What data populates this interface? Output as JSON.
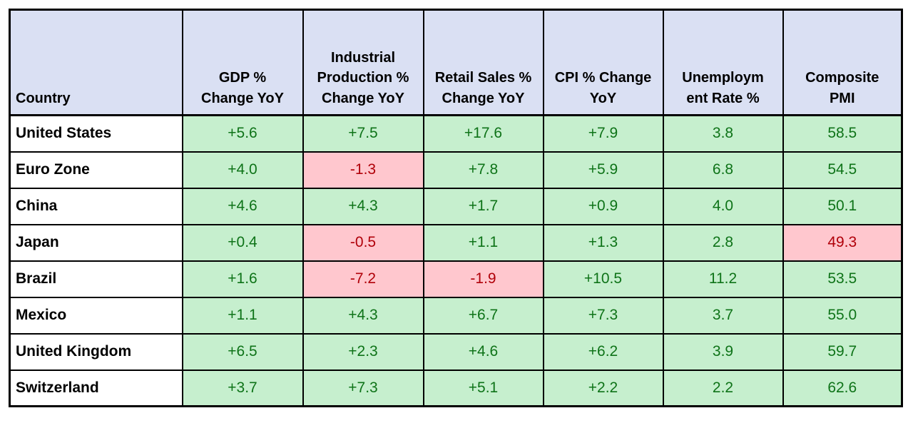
{
  "colors": {
    "header_bg": "#DAE0F3",
    "good_bg": "#C6EFCE",
    "good_text": "#0E7318",
    "bad_bg": "#FFC7CE",
    "bad_text": "#B00009",
    "border": "#000000"
  },
  "table": {
    "columns": [
      {
        "label": "Country"
      },
      {
        "label": "GDP %\nChange YoY"
      },
      {
        "label": "Industrial\nProduction %\nChange YoY"
      },
      {
        "label": "Retail Sales %\nChange YoY"
      },
      {
        "label": "CPI % Change\nYoY"
      },
      {
        "label": "Unemploym\nent Rate %"
      },
      {
        "label": "Composite\nPMI"
      }
    ],
    "rows": [
      {
        "country": "United States",
        "cells": [
          {
            "text": "+5.6",
            "status": "good"
          },
          {
            "text": "+7.5",
            "status": "good"
          },
          {
            "text": "+17.6",
            "status": "good"
          },
          {
            "text": "+7.9",
            "status": "good"
          },
          {
            "text": "3.8",
            "status": "good"
          },
          {
            "text": "58.5",
            "status": "good"
          }
        ]
      },
      {
        "country": "Euro Zone",
        "cells": [
          {
            "text": "+4.0",
            "status": "good"
          },
          {
            "text": "-1.3",
            "status": "bad"
          },
          {
            "text": "+7.8",
            "status": "good"
          },
          {
            "text": "+5.9",
            "status": "good"
          },
          {
            "text": "6.8",
            "status": "good"
          },
          {
            "text": "54.5",
            "status": "good"
          }
        ]
      },
      {
        "country": "China",
        "cells": [
          {
            "text": "+4.6",
            "status": "good"
          },
          {
            "text": "+4.3",
            "status": "good"
          },
          {
            "text": "+1.7",
            "status": "good"
          },
          {
            "text": "+0.9",
            "status": "good"
          },
          {
            "text": "4.0",
            "status": "good"
          },
          {
            "text": "50.1",
            "status": "good"
          }
        ]
      },
      {
        "country": "Japan",
        "cells": [
          {
            "text": "+0.4",
            "status": "good"
          },
          {
            "text": "-0.5",
            "status": "bad"
          },
          {
            "text": "+1.1",
            "status": "good"
          },
          {
            "text": "+1.3",
            "status": "good"
          },
          {
            "text": "2.8",
            "status": "good"
          },
          {
            "text": "49.3",
            "status": "bad"
          }
        ]
      },
      {
        "country": "Brazil",
        "cells": [
          {
            "text": "+1.6",
            "status": "good"
          },
          {
            "text": "-7.2",
            "status": "bad"
          },
          {
            "text": "-1.9",
            "status": "bad"
          },
          {
            "text": "+10.5",
            "status": "good"
          },
          {
            "text": "11.2",
            "status": "good"
          },
          {
            "text": "53.5",
            "status": "good"
          }
        ]
      },
      {
        "country": "Mexico",
        "cells": [
          {
            "text": "+1.1",
            "status": "good"
          },
          {
            "text": "+4.3",
            "status": "good"
          },
          {
            "text": "+6.7",
            "status": "good"
          },
          {
            "text": "+7.3",
            "status": "good"
          },
          {
            "text": "3.7",
            "status": "good"
          },
          {
            "text": "55.0",
            "status": "good"
          }
        ]
      },
      {
        "country": "United Kingdom",
        "cells": [
          {
            "text": "+6.5",
            "status": "good"
          },
          {
            "text": "+2.3",
            "status": "good"
          },
          {
            "text": "+4.6",
            "status": "good"
          },
          {
            "text": "+6.2",
            "status": "good"
          },
          {
            "text": "3.9",
            "status": "good"
          },
          {
            "text": "59.7",
            "status": "good"
          }
        ]
      },
      {
        "country": "Switzerland",
        "cells": [
          {
            "text": "+3.7",
            "status": "good"
          },
          {
            "text": "+7.3",
            "status": "good"
          },
          {
            "text": "+5.1",
            "status": "good"
          },
          {
            "text": "+2.2",
            "status": "good"
          },
          {
            "text": "2.2",
            "status": "good"
          },
          {
            "text": "62.6",
            "status": "good"
          }
        ]
      }
    ]
  },
  "chart_data": {
    "type": "table",
    "columns": [
      "Country",
      "GDP % Change YoY",
      "Industrial Production % Change YoY",
      "Retail Sales % Change YoY",
      "CPI % Change YoY",
      "Unemployment Rate %",
      "Composite PMI"
    ],
    "rows": [
      [
        "United States",
        5.6,
        7.5,
        17.6,
        7.9,
        3.8,
        58.5
      ],
      [
        "Euro Zone",
        4.0,
        -1.3,
        7.8,
        5.9,
        6.8,
        54.5
      ],
      [
        "China",
        4.6,
        4.3,
        1.7,
        0.9,
        4.0,
        50.1
      ],
      [
        "Japan",
        0.4,
        -0.5,
        1.1,
        1.3,
        2.8,
        49.3
      ],
      [
        "Brazil",
        1.6,
        -7.2,
        -1.9,
        10.5,
        11.2,
        53.5
      ],
      [
        "Mexico",
        1.1,
        4.3,
        6.7,
        7.3,
        3.7,
        55.0
      ],
      [
        "United Kingdom",
        6.5,
        2.3,
        4.6,
        6.2,
        3.9,
        59.7
      ],
      [
        "Switzerland",
        3.7,
        7.3,
        5.1,
        2.2,
        2.2,
        62.6
      ]
    ],
    "layout_hints": {
      "grid": true,
      "positive_cells_highlighted": "green",
      "negative_or_contraction_cells_highlighted": "red"
    }
  }
}
